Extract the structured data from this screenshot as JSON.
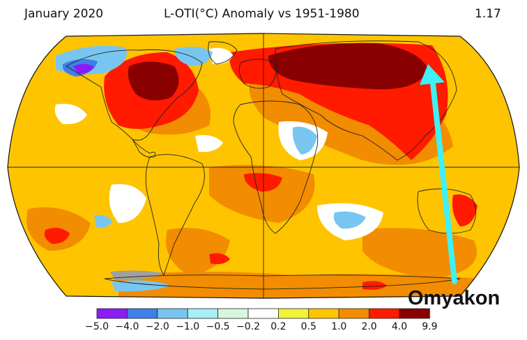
{
  "header": {
    "date": "January 2020",
    "title": "L-OTI(°C) Anomaly vs 1951-1980",
    "global_mean": "1.17"
  },
  "annotation": {
    "label": "Omyakon",
    "arrow_color": "#3ff0f5"
  },
  "legend": {
    "bins": [
      {
        "color": "#8a1cf5"
      },
      {
        "color": "#3f7fe8"
      },
      {
        "color": "#78c6f0"
      },
      {
        "color": "#a6eef8"
      },
      {
        "color": "#d8f6dc"
      },
      {
        "color": "#ffffff"
      },
      {
        "color": "#f2f23a"
      },
      {
        "color": "#ffc400"
      },
      {
        "color": "#f28c00"
      },
      {
        "color": "#ff1a00"
      },
      {
        "color": "#880000"
      }
    ],
    "ticks": [
      "−5.0",
      "−4.0",
      "−2.0",
      "−1.0",
      "−0.5",
      "−0.2",
      "0.2",
      "0.5",
      "1.0",
      "2.0",
      "4.0",
      "9.9"
    ]
  },
  "map": {
    "projection": "Robinson",
    "colors": {
      "base": "#ffc400",
      "moderate": "#f28c00",
      "warm": "#ff1a00",
      "hot": "#880000",
      "neutral": "#ffffff",
      "cool": "#78c6f0",
      "cold": "#3f7fe8",
      "very_cold": "#8a1cf5",
      "no_data": "#a0a0a0"
    }
  }
}
